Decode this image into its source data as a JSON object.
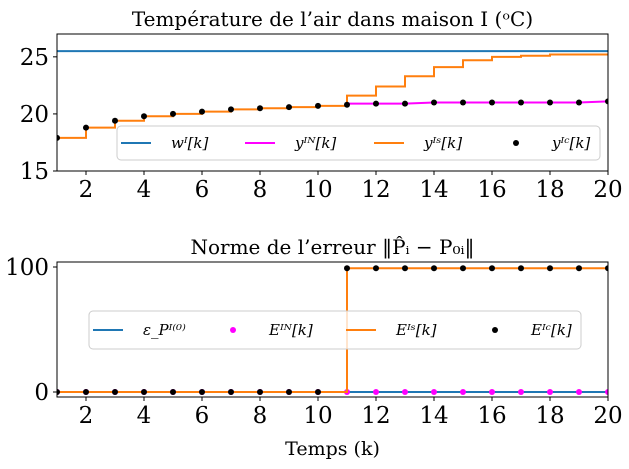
{
  "chart_data": [
    {
      "type": "line",
      "title": "Température de l’air dans maison I (ᵒC)",
      "xlabel": "",
      "ylabel": "",
      "xlim": [
        1,
        20
      ],
      "ylim": [
        15,
        27
      ],
      "xticks": [
        2,
        4,
        6,
        8,
        10,
        12,
        14,
        16,
        18,
        20
      ],
      "yticks": [
        15,
        20,
        25
      ],
      "grid": false,
      "legend_position": "lower-right",
      "series": [
        {
          "name": "wᴵ[k]",
          "style": "line",
          "color": "#1f77b4",
          "x": [
            1,
            20
          ],
          "y": [
            25.5,
            25.5
          ]
        },
        {
          "name": "yᴵᴺ[k]",
          "style": "line",
          "color": "#ff00ff",
          "x": [
            11,
            12,
            13,
            14,
            15,
            16,
            17,
            18,
            19,
            20
          ],
          "y": [
            20.9,
            20.9,
            20.9,
            21.0,
            21.0,
            21.0,
            21.0,
            21.0,
            21.0,
            21.1
          ]
        },
        {
          "name": "yᴵˢ[k]",
          "style": "step",
          "color": "#ff7f0e",
          "x": [
            1,
            2,
            3,
            4,
            5,
            6,
            7,
            8,
            9,
            10,
            11,
            12,
            13,
            14,
            15,
            16,
            17,
            18,
            19,
            20
          ],
          "y": [
            17.9,
            18.8,
            19.4,
            19.8,
            20.0,
            20.2,
            20.4,
            20.5,
            20.6,
            20.7,
            21.6,
            22.4,
            23.3,
            24.1,
            24.7,
            25.0,
            25.1,
            25.2,
            25.2,
            25.2
          ]
        },
        {
          "name": "yᴵᶜ[k]",
          "style": "markers",
          "color": "#000000",
          "x": [
            1,
            2,
            3,
            4,
            5,
            6,
            7,
            8,
            9,
            10,
            11,
            12,
            13,
            14,
            15,
            16,
            17,
            18,
            19,
            20
          ],
          "y": [
            17.9,
            18.8,
            19.4,
            19.8,
            20.0,
            20.2,
            20.4,
            20.5,
            20.6,
            20.7,
            20.8,
            20.9,
            20.9,
            21.0,
            21.0,
            21.0,
            21.0,
            21.0,
            21.0,
            21.1
          ]
        }
      ]
    },
    {
      "type": "line",
      "title": "Norme de l’erreur ‖P̂ᵢ − P₀ᵢ‖",
      "xlabel": "Temps (k)",
      "ylabel": "",
      "xlim": [
        1,
        20
      ],
      "ylim": [
        -4,
        104
      ],
      "xticks": [
        2,
        4,
        6,
        8,
        10,
        12,
        14,
        16,
        18,
        20
      ],
      "yticks": [
        0,
        100
      ],
      "grid": false,
      "legend_position": "center",
      "series": [
        {
          "name": "ε_Pᴵ⁽⁰⁾",
          "style": "line",
          "color": "#1f77b4",
          "x": [
            1,
            20
          ],
          "y": [
            0,
            0
          ]
        },
        {
          "name": "Eᴵᴺ[k]",
          "style": "markers",
          "color": "#ff00ff",
          "x": [
            1,
            2,
            3,
            4,
            5,
            6,
            7,
            8,
            9,
            10,
            11,
            12,
            13,
            14,
            15,
            16,
            17,
            18,
            19,
            20
          ],
          "y": [
            0,
            0,
            0,
            0,
            0,
            0,
            0,
            0,
            0,
            0,
            0,
            0,
            0,
            0,
            0,
            0,
            0,
            0,
            0,
            0
          ]
        },
        {
          "name": "Eᴵˢ[k]",
          "style": "step",
          "color": "#ff7f0e",
          "x": [
            1,
            2,
            3,
            4,
            5,
            6,
            7,
            8,
            9,
            10,
            11,
            12,
            13,
            14,
            15,
            16,
            17,
            18,
            19,
            20
          ],
          "y": [
            0,
            0,
            0,
            0,
            0,
            0,
            0,
            0,
            0,
            0,
            99,
            99,
            99,
            99,
            99,
            99,
            99,
            99,
            99,
            99
          ]
        },
        {
          "name": "Eᴵᶜ[k]",
          "style": "markers",
          "color": "#000000",
          "x": [
            1,
            2,
            3,
            4,
            5,
            6,
            7,
            8,
            9,
            10,
            11,
            12,
            13,
            14,
            15,
            16,
            17,
            18,
            19,
            20
          ],
          "y": [
            0,
            0,
            0,
            0,
            0,
            0,
            0,
            0,
            0,
            0,
            99,
            99,
            99,
            99,
            99,
            99,
            99,
            99,
            99,
            99
          ]
        }
      ]
    }
  ]
}
